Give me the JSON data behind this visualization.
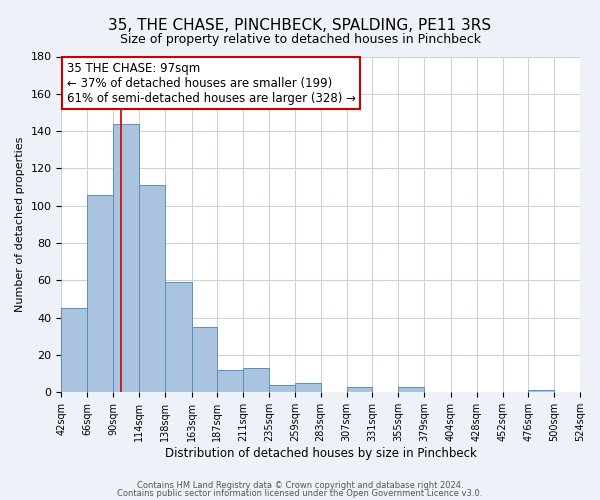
{
  "title": "35, THE CHASE, PINCHBECK, SPALDING, PE11 3RS",
  "subtitle": "Size of property relative to detached houses in Pinchbeck",
  "xlabel": "Distribution of detached houses by size in Pinchbeck",
  "ylabel": "Number of detached properties",
  "bin_edges": [
    42,
    66,
    90,
    114,
    138,
    163,
    187,
    211,
    235,
    259,
    283,
    307,
    331,
    355,
    379,
    404,
    428,
    452,
    476,
    500,
    524
  ],
  "bar_heights": [
    45,
    106,
    144,
    111,
    59,
    35,
    12,
    13,
    4,
    5,
    0,
    3,
    0,
    3,
    0,
    0,
    0,
    0,
    1,
    0
  ],
  "bar_color": "#aac4e0",
  "bar_edge_color": "#5a8fc0",
  "vline_x": 97,
  "vline_color": "#cc0000",
  "ylim": [
    0,
    180
  ],
  "yticks": [
    0,
    20,
    40,
    60,
    80,
    100,
    120,
    140,
    160,
    180
  ],
  "annotation_box_text": "35 THE CHASE: 97sqm\n← 37% of detached houses are smaller (199)\n61% of semi-detached houses are larger (328) →",
  "footer1": "Contains HM Land Registry data © Crown copyright and database right 2024.",
  "footer2": "Contains public sector information licensed under the Open Government Licence v3.0.",
  "background_color": "#eef2f8",
  "plot_background": "#ffffff",
  "grid_color": "#c8d0de",
  "title_fontsize": 11,
  "subtitle_fontsize": 9,
  "annotation_fontsize": 8.5,
  "footer_fontsize": 6
}
